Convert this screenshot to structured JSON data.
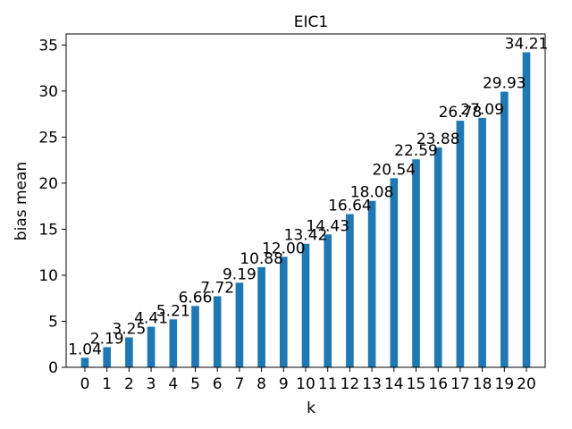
{
  "chart_data": {
    "type": "bar",
    "title": "EIC1",
    "xlabel": "k",
    "ylabel": "bias mean",
    "categories": [
      "0",
      "1",
      "2",
      "3",
      "4",
      "5",
      "6",
      "7",
      "8",
      "9",
      "10",
      "11",
      "12",
      "13",
      "14",
      "15",
      "16",
      "17",
      "18",
      "19",
      "20"
    ],
    "values": [
      1.04,
      2.19,
      3.25,
      4.41,
      5.21,
      6.66,
      7.72,
      9.19,
      10.88,
      12.0,
      13.42,
      14.43,
      16.64,
      18.08,
      20.54,
      22.59,
      23.88,
      26.78,
      27.09,
      29.93,
      34.21
    ],
    "data_labels": [
      "1.04",
      "2.19",
      "3.25",
      "4.41",
      "5.21",
      "6.66",
      "7.72",
      "9.19",
      "10.88",
      "12.00",
      "13.42",
      "14.43",
      "16.64",
      "18.08",
      "20.54",
      "22.59",
      "23.88",
      "26.78",
      "27.09",
      "29.93",
      "34.21"
    ],
    "yticks": [
      "0",
      "5",
      "10",
      "15",
      "20",
      "25",
      "30",
      "35"
    ],
    "ylim": [
      0,
      36.2
    ],
    "bar_color": "#1f77b4",
    "grid": false,
    "legend": false
  }
}
